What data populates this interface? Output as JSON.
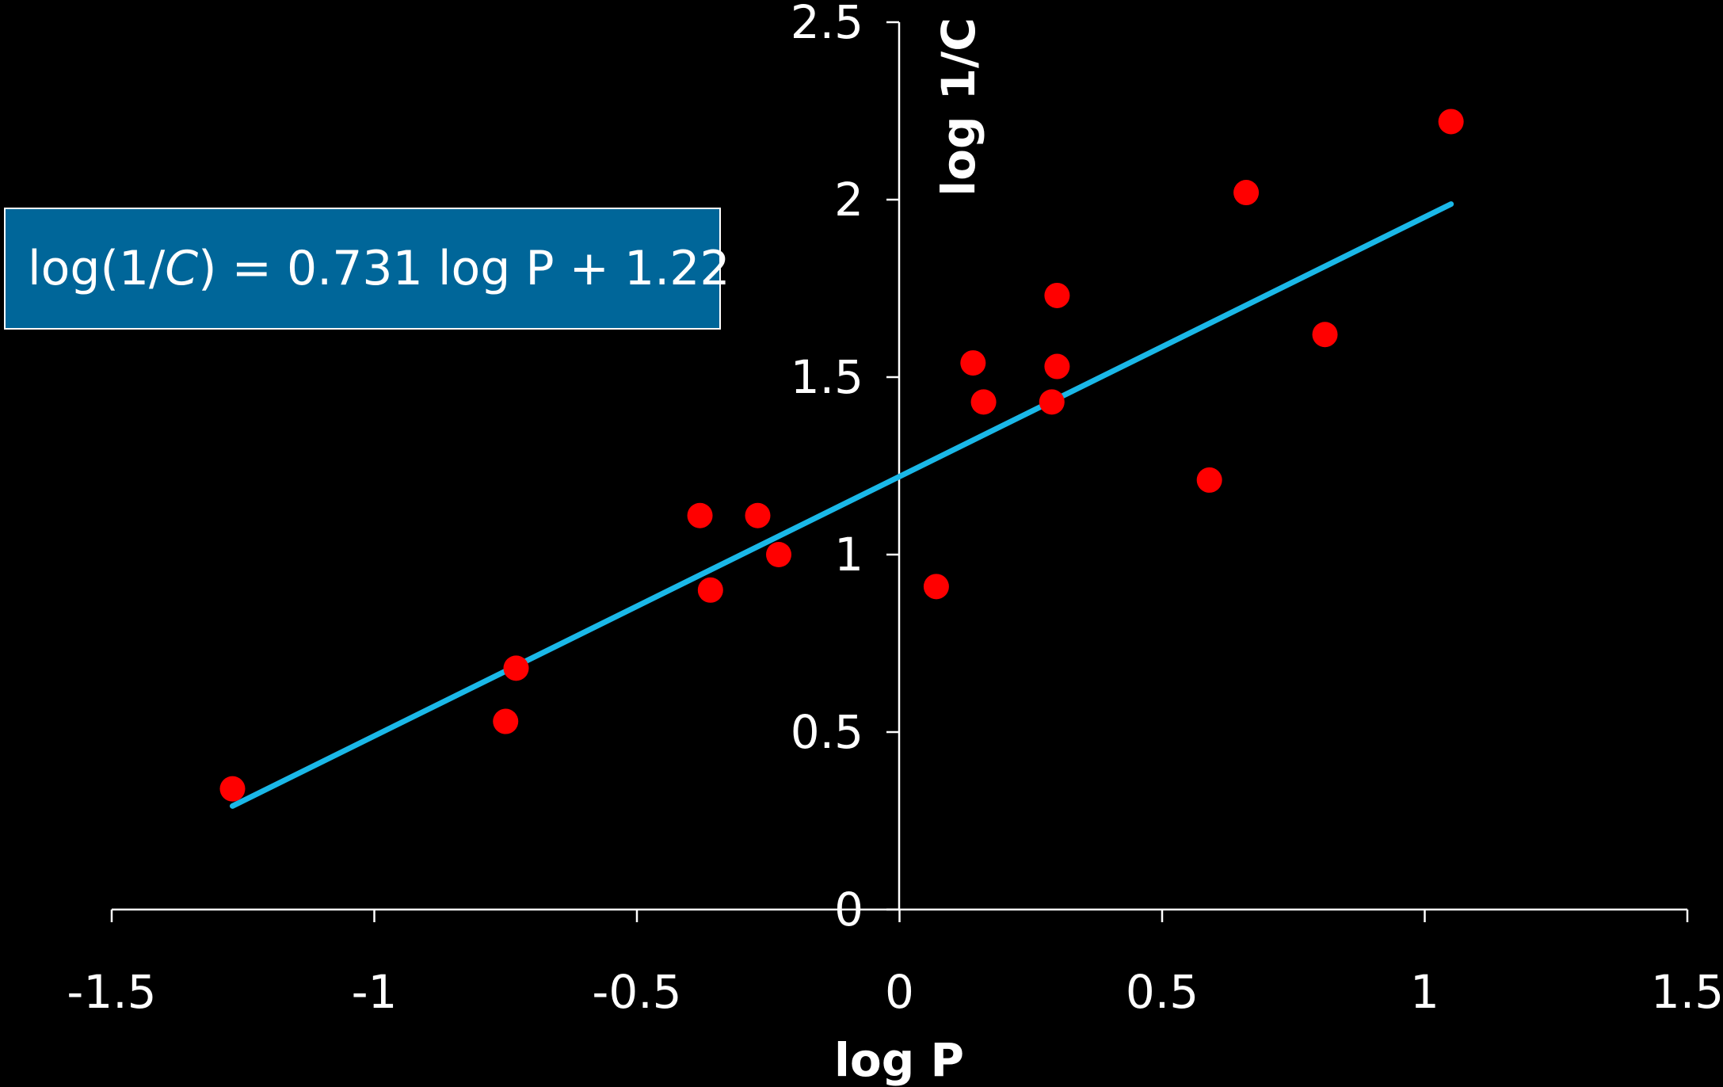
{
  "colors": {
    "background": "#000000",
    "axis": "#ffffff",
    "point": "#ff0000",
    "fit_line": "#1ab8e8",
    "equation_box": "#006699"
  },
  "equation": {
    "prefix": "log(1/",
    "variable": "C",
    "suffix": ") = 0.731 log P + 1.22"
  },
  "chart_data": {
    "type": "scatter",
    "xlabel": "log P",
    "ylabel": "log 1/C",
    "xlim": [
      -1.5,
      1.5
    ],
    "ylim": [
      0,
      2.5
    ],
    "xticks": [
      "-1.5",
      "-1",
      "-0.5",
      "0",
      "0.5",
      "1",
      "1.5"
    ],
    "yticks": [
      "0",
      "0.5",
      "1",
      "1.5",
      "2",
      "2.5"
    ],
    "grid": false,
    "points": [
      {
        "x": -1.27,
        "y": 0.34
      },
      {
        "x": -0.75,
        "y": 0.53
      },
      {
        "x": -0.73,
        "y": 0.68
      },
      {
        "x": -0.38,
        "y": 1.11
      },
      {
        "x": -0.36,
        "y": 0.9
      },
      {
        "x": -0.27,
        "y": 1.11
      },
      {
        "x": -0.23,
        "y": 1.0
      },
      {
        "x": 0.07,
        "y": 0.91
      },
      {
        "x": 0.14,
        "y": 1.54
      },
      {
        "x": 0.16,
        "y": 1.43
      },
      {
        "x": 0.29,
        "y": 1.43
      },
      {
        "x": 0.3,
        "y": 1.73
      },
      {
        "x": 0.3,
        "y": 1.53
      },
      {
        "x": 0.59,
        "y": 1.21
      },
      {
        "x": 0.66,
        "y": 2.02
      },
      {
        "x": 0.81,
        "y": 1.62
      },
      {
        "x": 1.05,
        "y": 2.22
      }
    ],
    "fit": {
      "slope": 0.731,
      "intercept": 1.22,
      "x_range": [
        -1.27,
        1.05
      ]
    }
  }
}
